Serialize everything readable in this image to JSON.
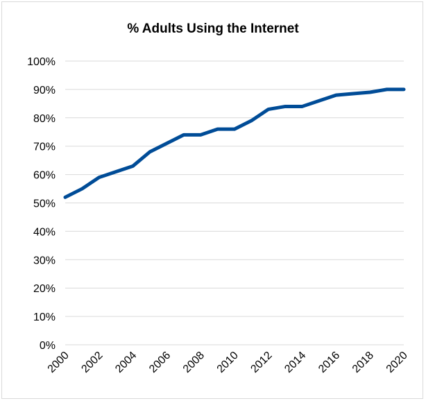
{
  "chart_data": {
    "type": "line",
    "title": "% Adults Using the Internet",
    "xlabel": "",
    "ylabel": "",
    "x": [
      2000,
      2001,
      2002,
      2003,
      2004,
      2005,
      2006,
      2007,
      2008,
      2009,
      2010,
      2011,
      2012,
      2013,
      2014,
      2015,
      2016,
      2017,
      2018,
      2019,
      2020
    ],
    "series": [
      {
        "values": [
          52,
          55,
          59,
          61,
          63,
          68,
          71,
          74,
          74,
          76,
          76,
          79,
          83,
          84,
          84,
          86,
          88,
          88.5,
          89,
          90,
          90
        ]
      }
    ],
    "xtick_labels": [
      "2000",
      "2002",
      "2004",
      "2006",
      "2008",
      "2010",
      "2012",
      "2014",
      "2016",
      "2018",
      "2020"
    ],
    "ytick_labels": [
      "0%",
      "10%",
      "20%",
      "30%",
      "40%",
      "50%",
      "60%",
      "70%",
      "80%",
      "90%",
      "100%"
    ],
    "xlim": [
      2000,
      2020
    ],
    "ylim": [
      0,
      100
    ],
    "grid": "horizontal",
    "legend": "none",
    "colors": {
      "line": "#004c97",
      "grid": "#d9d9d9",
      "frame": "#d9d9d9"
    }
  }
}
